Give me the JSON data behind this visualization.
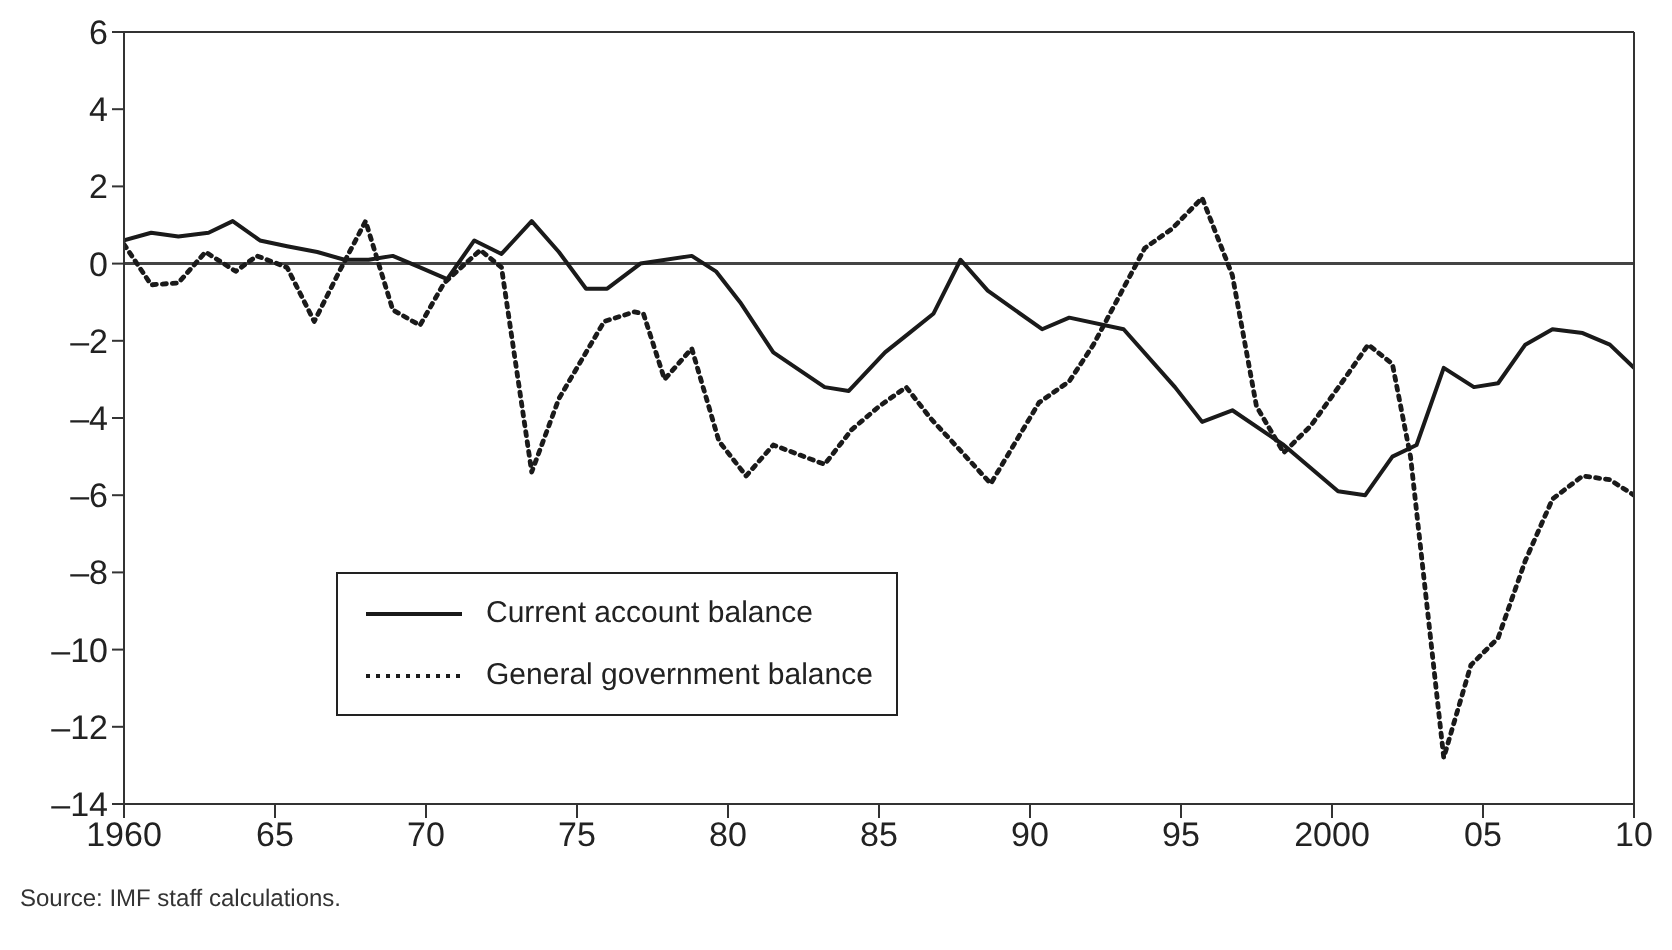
{
  "chart_data": {
    "type": "line",
    "xlim": [
      1960,
      2010
    ],
    "xticks": [
      1960,
      {
        "value": 1965,
        "label": "65"
      },
      {
        "value": 1970,
        "label": "70"
      },
      {
        "value": 1975,
        "label": "75"
      },
      {
        "value": 1980,
        "label": "80"
      },
      {
        "value": 1985,
        "label": "85"
      },
      {
        "value": 1990,
        "label": "90"
      },
      {
        "value": 1995,
        "label": "95"
      },
      2000,
      {
        "value": 2005,
        "label": "05"
      },
      {
        "value": 2010,
        "label": "10"
      }
    ],
    "ylim": [
      -14,
      6
    ],
    "yticks": [
      6,
      4,
      2,
      0,
      {
        "value": -2,
        "label": "–2"
      },
      {
        "value": -4,
        "label": "–4"
      },
      {
        "value": -6,
        "label": "–6"
      },
      {
        "value": -8,
        "label": "–8"
      },
      {
        "value": -10,
        "label": "–10"
      },
      {
        "value": -12,
        "label": "–12"
      },
      {
        "value": -14,
        "label": "–14"
      }
    ],
    "grid": false,
    "legend": "bottom left",
    "marker": "none",
    "ref_lines": [
      {
        "axis": "y",
        "value": 0,
        "color": "#444444"
      }
    ],
    "annotations": [
      "Source: IMF staff calculations."
    ],
    "series": [
      {
        "name": "Current account balance",
        "color": "#1a1a1a",
        "line_style": "solid",
        "x": [
          1960,
          1960.9,
          1961.8,
          1962.8,
          1963.6,
          1964.5,
          1965.4,
          1966.4,
          1967.3,
          1968.1,
          1968.9,
          1969.8,
          1970.7,
          1971.6,
          1972.5,
          1973.5,
          1974.4,
          1975.3,
          1976.0,
          1977.1,
          1978.8,
          1979.6,
          1980.4,
          1981.5,
          1983.2,
          1984.0,
          1985.2,
          1986.0,
          1986.8,
          1987.7,
          1988.6,
          1990.4,
          1991.3,
          1993.1,
          1994.8,
          1995.7,
          1996.7,
          1998.4,
          2000.2,
          2001.1,
          2002.0,
          2002.8,
          2003.7,
          2004.7,
          2005.5,
          2006.4,
          2007.3,
          2008.3,
          2009.2,
          2010
        ],
        "values": [
          0.6,
          0.8,
          0.7,
          0.8,
          1.1,
          0.6,
          0.45,
          0.3,
          0.1,
          0.1,
          0.2,
          -0.1,
          -0.4,
          0.6,
          0.25,
          1.1,
          0.3,
          -0.65,
          -0.65,
          0,
          0.2,
          -0.2,
          -1.0,
          -2.3,
          -3.2,
          -3.3,
          -2.3,
          -1.8,
          -1.3,
          0.1,
          -0.7,
          -1.7,
          -1.4,
          -1.7,
          -3.2,
          -4.1,
          -3.8,
          -4.7,
          -5.9,
          -6.0,
          -5.0,
          -4.7,
          -2.7,
          -3.2,
          -3.1,
          -2.1,
          -1.7,
          -1.8,
          -2.1,
          -2.7
        ]
      },
      {
        "name": "General government balance",
        "color": "#1a1a1a",
        "line_style": "dotted",
        "x": [
          1960,
          1960.9,
          1961.8,
          1962.7,
          1963.7,
          1964.4,
          1965.4,
          1966.3,
          1967.1,
          1968.0,
          1968.9,
          1969.8,
          1970.6,
          1971.8,
          1972.5,
          1973.5,
          1974.4,
          1975.9,
          1976.9,
          1977.2,
          1977.9,
          1978.8,
          1979.7,
          1980.6,
          1981.5,
          1983.2,
          1984.1,
          1985.0,
          1985.9,
          1986.7,
          1988.7,
          1990.3,
          1991.3,
          1992.1,
          1993.8,
          1994.7,
          1995.7,
          1996.7,
          1997.5,
          1998.4,
          1999.3,
          2000.4,
          2001.2,
          2002.0,
          2002.6,
          2003.7,
          2004.6,
          2005.5,
          2006.4,
          2007.3,
          2008.3,
          2009.2,
          2010
        ],
        "values": [
          0.5,
          -0.55,
          -0.5,
          0.3,
          -0.2,
          0.2,
          -0.1,
          -1.5,
          -0.25,
          1.1,
          -1.2,
          -1.6,
          -0.5,
          0.35,
          -0.1,
          -5.4,
          -3.5,
          -1.5,
          -1.25,
          -1.3,
          -3.0,
          -2.2,
          -4.6,
          -5.5,
          -4.7,
          -5.2,
          -4.3,
          -3.7,
          -3.2,
          -4.0,
          -5.7,
          -3.6,
          -3.05,
          -2.1,
          0.4,
          0.9,
          1.7,
          -0.3,
          -3.7,
          -4.9,
          -4.2,
          -3.0,
          -2.1,
          -2.6,
          -5.0,
          -12.8,
          -10.4,
          -9.7,
          -7.7,
          -6.1,
          -5.5,
          -5.6,
          -6.0
        ]
      }
    ]
  }
}
